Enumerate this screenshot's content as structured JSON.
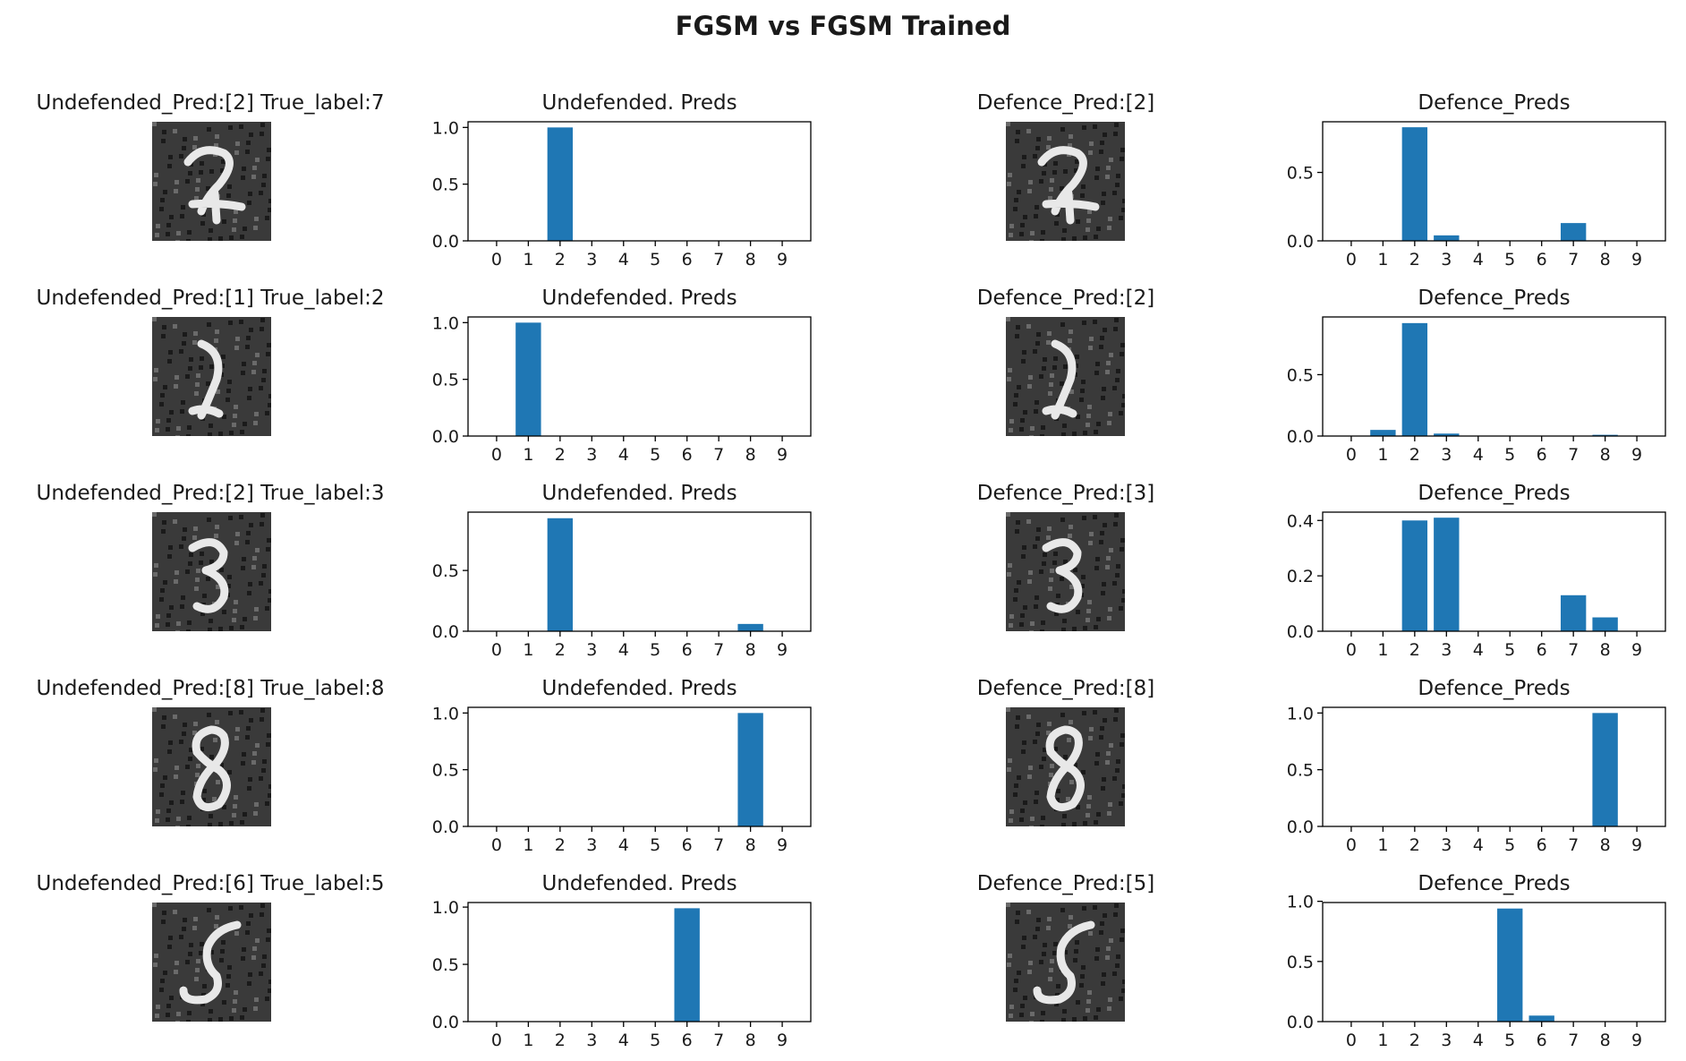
{
  "title": "FGSM vs FGSM Trained",
  "colors": {
    "bar": "#1f77b4",
    "axis": "#000000",
    "image_bg": "#3a3a3a",
    "digit": "#e8e8e8"
  },
  "chart_data": [
    {
      "row": 0,
      "type": "bar",
      "image_title": "Undefended_Pred:[2] True_label:7",
      "title": "Undefended. Preds",
      "categories": [
        "0",
        "1",
        "2",
        "3",
        "4",
        "5",
        "6",
        "7",
        "8",
        "9"
      ],
      "values": [
        0,
        0,
        1.0,
        0,
        0,
        0,
        0,
        0,
        0,
        0
      ],
      "yticks": [
        0.0,
        0.5,
        1.0
      ],
      "ytick_labels": [
        "0.0",
        "0.5",
        "1.0"
      ],
      "ylim": [
        0,
        1.05
      ]
    },
    {
      "row": 0,
      "type": "bar",
      "image_title": "Defence_Pred:[2]",
      "title": "Defence_Preds",
      "categories": [
        "0",
        "1",
        "2",
        "3",
        "4",
        "5",
        "6",
        "7",
        "8",
        "9"
      ],
      "values": [
        0,
        0,
        0.83,
        0.04,
        0,
        0,
        0,
        0.13,
        0,
        0
      ],
      "yticks": [
        0.0,
        0.5
      ],
      "ytick_labels": [
        "0.0",
        "0.5"
      ],
      "ylim": [
        0,
        0.87
      ]
    },
    {
      "row": 1,
      "type": "bar",
      "image_title": "Undefended_Pred:[1] True_label:2",
      "title": "Undefended. Preds",
      "categories": [
        "0",
        "1",
        "2",
        "3",
        "4",
        "5",
        "6",
        "7",
        "8",
        "9"
      ],
      "values": [
        0,
        1.0,
        0,
        0,
        0,
        0,
        0,
        0,
        0,
        0
      ],
      "yticks": [
        0.0,
        0.5,
        1.0
      ],
      "ytick_labels": [
        "0.0",
        "0.5",
        "1.0"
      ],
      "ylim": [
        0,
        1.05
      ]
    },
    {
      "row": 1,
      "type": "bar",
      "image_title": "Defence_Pred:[2]",
      "title": "Defence_Preds",
      "categories": [
        "0",
        "1",
        "2",
        "3",
        "4",
        "5",
        "6",
        "7",
        "8",
        "9"
      ],
      "values": [
        0,
        0.05,
        0.92,
        0.02,
        0,
        0,
        0,
        0,
        0.01,
        0
      ],
      "yticks": [
        0.0,
        0.5
      ],
      "ytick_labels": [
        "0.0",
        "0.5"
      ],
      "ylim": [
        0,
        0.97
      ]
    },
    {
      "row": 2,
      "type": "bar",
      "image_title": "Undefended_Pred:[2] True_label:3",
      "title": "Undefended. Preds",
      "categories": [
        "0",
        "1",
        "2",
        "3",
        "4",
        "5",
        "6",
        "7",
        "8",
        "9"
      ],
      "values": [
        0,
        0,
        0.93,
        0,
        0,
        0,
        0,
        0,
        0.06,
        0
      ],
      "yticks": [
        0.0,
        0.5
      ],
      "ytick_labels": [
        "0.0",
        "0.5"
      ],
      "ylim": [
        0,
        0.98
      ]
    },
    {
      "row": 2,
      "type": "bar",
      "image_title": "Defence_Pred:[3]",
      "title": "Defence_Preds",
      "categories": [
        "0",
        "1",
        "2",
        "3",
        "4",
        "5",
        "6",
        "7",
        "8",
        "9"
      ],
      "values": [
        0,
        0,
        0.4,
        0.41,
        0,
        0,
        0,
        0.13,
        0.05,
        0
      ],
      "yticks": [
        0.0,
        0.2,
        0.4
      ],
      "ytick_labels": [
        "0.0",
        "0.2",
        "0.4"
      ],
      "ylim": [
        0,
        0.43
      ]
    },
    {
      "row": 3,
      "type": "bar",
      "image_title": "Undefended_Pred:[8] True_label:8",
      "title": "Undefended. Preds",
      "categories": [
        "0",
        "1",
        "2",
        "3",
        "4",
        "5",
        "6",
        "7",
        "8",
        "9"
      ],
      "values": [
        0,
        0,
        0,
        0,
        0,
        0,
        0,
        0,
        1.0,
        0
      ],
      "yticks": [
        0.0,
        0.5,
        1.0
      ],
      "ytick_labels": [
        "0.0",
        "0.5",
        "1.0"
      ],
      "ylim": [
        0,
        1.05
      ]
    },
    {
      "row": 3,
      "type": "bar",
      "image_title": "Defence_Pred:[8]",
      "title": "Defence_Preds",
      "categories": [
        "0",
        "1",
        "2",
        "3",
        "4",
        "5",
        "6",
        "7",
        "8",
        "9"
      ],
      "values": [
        0,
        0,
        0,
        0,
        0,
        0,
        0,
        0,
        1.0,
        0
      ],
      "yticks": [
        0.0,
        0.5,
        1.0
      ],
      "ytick_labels": [
        "0.0",
        "0.5",
        "1.0"
      ],
      "ylim": [
        0,
        1.05
      ]
    },
    {
      "row": 4,
      "type": "bar",
      "image_title": "Undefended_Pred:[6] True_label:5",
      "title": "Undefended. Preds",
      "categories": [
        "0",
        "1",
        "2",
        "3",
        "4",
        "5",
        "6",
        "7",
        "8",
        "9"
      ],
      "values": [
        0,
        0,
        0,
        0,
        0,
        0,
        0.99,
        0,
        0,
        0
      ],
      "yticks": [
        0.0,
        0.5,
        1.0
      ],
      "ytick_labels": [
        "0.0",
        "0.5",
        "1.0"
      ],
      "ylim": [
        0,
        1.04
      ]
    },
    {
      "row": 4,
      "type": "bar",
      "image_title": "Defence_Pred:[5]",
      "title": "Defence_Preds",
      "categories": [
        "0",
        "1",
        "2",
        "3",
        "4",
        "5",
        "6",
        "7",
        "8",
        "9"
      ],
      "values": [
        0,
        0,
        0,
        0,
        0,
        0.94,
        0.05,
        0,
        0,
        0
      ],
      "yticks": [
        0.0,
        0.5,
        1.0
      ],
      "ytick_labels": [
        "0.0",
        "0.5",
        "1.0"
      ],
      "ylim": [
        0,
        0.99
      ]
    }
  ]
}
